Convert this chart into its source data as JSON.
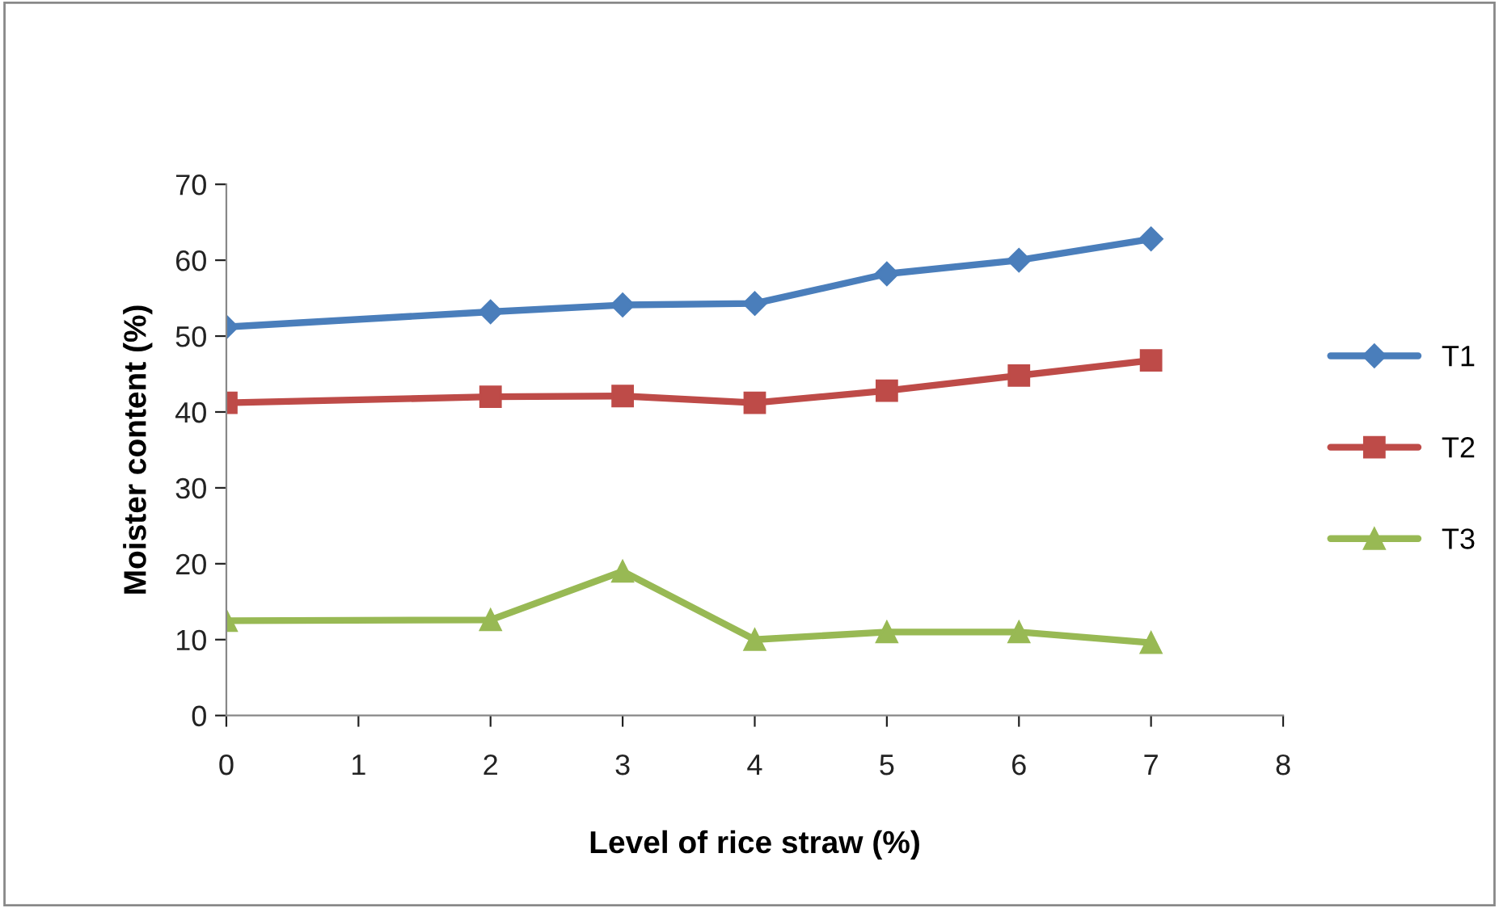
{
  "chart_data": {
    "type": "line",
    "xlabel": "Level of rice straw (%)",
    "ylabel": "Moister content (%)",
    "x": [
      0,
      2,
      3,
      4,
      5,
      6,
      7
    ],
    "series": [
      {
        "name": "T1",
        "color": "#4a7ebb",
        "values": [
          51.2,
          53.2,
          54.1,
          54.3,
          58.2,
          60.0,
          62.8
        ],
        "marker": "diamond"
      },
      {
        "name": "T2",
        "color": "#be4b48",
        "values": [
          41.2,
          42.0,
          42.1,
          41.2,
          42.8,
          44.8,
          46.8
        ],
        "marker": "square"
      },
      {
        "name": "T3",
        "color": "#98b954",
        "values": [
          12.5,
          12.6,
          19.0,
          10.0,
          11.0,
          11.0,
          9.6
        ],
        "marker": "triangle"
      }
    ],
    "xlim": [
      0,
      8
    ],
    "xticks": [
      0,
      1,
      2,
      3,
      4,
      5,
      6,
      7,
      8
    ],
    "ylim": [
      0,
      70
    ],
    "yticks": [
      0,
      10,
      20,
      30,
      40,
      50,
      60,
      70
    ],
    "grid": false,
    "legend": "right",
    "line_style": "solid"
  }
}
